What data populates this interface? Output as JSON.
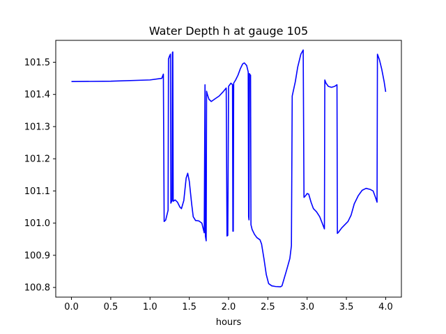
{
  "chart_data": {
    "type": "line",
    "title": "Water Depth h at gauge 105",
    "xlabel": "hours",
    "ylabel": "",
    "xlim": [
      -0.2,
      4.2
    ],
    "ylim": [
      100.77,
      101.568
    ],
    "xticks": [
      0.0,
      0.5,
      1.0,
      1.5,
      2.0,
      2.5,
      3.0,
      3.5,
      4.0
    ],
    "xtick_labels": [
      "0.0",
      "0.5",
      "1.0",
      "1.5",
      "2.0",
      "2.5",
      "3.0",
      "3.5",
      "4.0"
    ],
    "yticks": [
      100.8,
      100.9,
      101.0,
      101.1,
      101.2,
      101.3,
      101.4,
      101.5
    ],
    "ytick_labels": [
      "100.8",
      "100.9",
      "101.0",
      "101.1",
      "101.2",
      "101.3",
      "101.4",
      "101.5"
    ],
    "grid": false,
    "series": [
      {
        "color": "#0000ff",
        "points": [
          [
            0.0,
            101.44
          ],
          [
            0.5,
            101.441
          ],
          [
            1.0,
            101.445
          ],
          [
            1.15,
            101.45
          ],
          [
            1.17,
            101.463
          ],
          [
            1.18,
            101.005
          ],
          [
            1.2,
            101.01
          ],
          [
            1.23,
            101.04
          ],
          [
            1.235,
            101.51
          ],
          [
            1.25,
            101.52
          ],
          [
            1.26,
            101.525
          ],
          [
            1.265,
            101.062
          ],
          [
            1.28,
            101.07
          ],
          [
            1.285,
            101.53
          ],
          [
            1.29,
            101.532
          ],
          [
            1.295,
            101.068
          ],
          [
            1.32,
            101.072
          ],
          [
            1.35,
            101.065
          ],
          [
            1.38,
            101.05
          ],
          [
            1.4,
            101.045
          ],
          [
            1.43,
            101.07
          ],
          [
            1.46,
            101.14
          ],
          [
            1.48,
            101.155
          ],
          [
            1.5,
            101.13
          ],
          [
            1.53,
            101.06
          ],
          [
            1.55,
            101.02
          ],
          [
            1.58,
            101.008
          ],
          [
            1.62,
            101.007
          ],
          [
            1.66,
            101.0
          ],
          [
            1.69,
            100.97
          ],
          [
            1.7,
            101.43
          ],
          [
            1.705,
            100.96
          ],
          [
            1.715,
            100.945
          ],
          [
            1.72,
            101.41
          ],
          [
            1.73,
            101.4
          ],
          [
            1.75,
            101.385
          ],
          [
            1.78,
            101.378
          ],
          [
            1.82,
            101.385
          ],
          [
            1.88,
            101.395
          ],
          [
            1.93,
            101.408
          ],
          [
            1.97,
            101.42
          ],
          [
            1.98,
            100.96
          ],
          [
            1.99,
            100.962
          ],
          [
            2.0,
            101.425
          ],
          [
            2.03,
            101.435
          ],
          [
            2.05,
            101.43
          ],
          [
            2.055,
            100.975
          ],
          [
            2.06,
            100.975
          ],
          [
            2.065,
            101.435
          ],
          [
            2.09,
            101.445
          ],
          [
            2.12,
            101.46
          ],
          [
            2.15,
            101.48
          ],
          [
            2.18,
            101.495
          ],
          [
            2.2,
            101.498
          ],
          [
            2.23,
            101.49
          ],
          [
            2.25,
            101.47
          ],
          [
            2.255,
            101.02
          ],
          [
            2.26,
            101.01
          ],
          [
            2.265,
            101.465
          ],
          [
            2.27,
            101.462
          ],
          [
            2.28,
            101.46
          ],
          [
            2.285,
            100.995
          ],
          [
            2.3,
            100.98
          ],
          [
            2.33,
            100.965
          ],
          [
            2.36,
            100.955
          ],
          [
            2.4,
            100.948
          ],
          [
            2.42,
            100.935
          ],
          [
            2.45,
            100.89
          ],
          [
            2.48,
            100.84
          ],
          [
            2.51,
            100.812
          ],
          [
            2.55,
            100.805
          ],
          [
            2.6,
            100.803
          ],
          [
            2.66,
            100.802
          ],
          [
            2.68,
            100.805
          ],
          [
            2.71,
            100.83
          ],
          [
            2.74,
            100.855
          ],
          [
            2.78,
            100.89
          ],
          [
            2.8,
            100.93
          ],
          [
            2.81,
            101.395
          ],
          [
            2.85,
            101.44
          ],
          [
            2.88,
            101.485
          ],
          [
            2.92,
            101.525
          ],
          [
            2.95,
            101.538
          ],
          [
            2.96,
            101.08
          ],
          [
            2.98,
            101.085
          ],
          [
            3.0,
            101.092
          ],
          [
            3.02,
            101.09
          ],
          [
            3.05,
            101.065
          ],
          [
            3.08,
            101.045
          ],
          [
            3.12,
            101.035
          ],
          [
            3.16,
            101.02
          ],
          [
            3.2,
            100.995
          ],
          [
            3.22,
            100.982
          ],
          [
            3.225,
            101.445
          ],
          [
            3.24,
            101.435
          ],
          [
            3.27,
            101.425
          ],
          [
            3.31,
            101.422
          ],
          [
            3.35,
            101.425
          ],
          [
            3.38,
            101.43
          ],
          [
            3.385,
            100.968
          ],
          [
            3.4,
            100.972
          ],
          [
            3.44,
            100.985
          ],
          [
            3.48,
            100.995
          ],
          [
            3.52,
            101.005
          ],
          [
            3.56,
            101.025
          ],
          [
            3.6,
            101.06
          ],
          [
            3.65,
            101.085
          ],
          [
            3.7,
            101.102
          ],
          [
            3.75,
            101.108
          ],
          [
            3.8,
            101.105
          ],
          [
            3.84,
            101.1
          ],
          [
            3.87,
            101.08
          ],
          [
            3.89,
            101.065
          ],
          [
            3.895,
            101.525
          ],
          [
            3.92,
            101.508
          ],
          [
            3.95,
            101.478
          ],
          [
            3.98,
            101.44
          ],
          [
            4.0,
            101.408
          ]
        ]
      }
    ]
  }
}
